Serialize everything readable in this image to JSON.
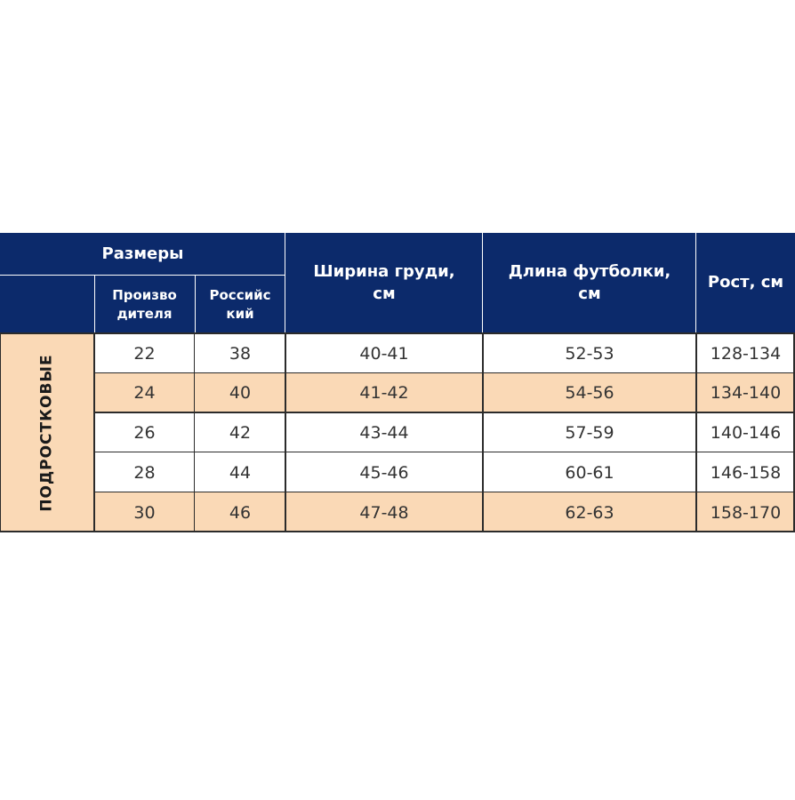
{
  "table": {
    "header": {
      "sizes": "Размеры",
      "manufacturer": "Произво\nдителя",
      "russian": "Российс\nкий",
      "chest_width": "Ширина груди,\nсм",
      "shirt_length": "Длина футболки,\nсм",
      "height": "Рост, см"
    },
    "category_label": "ПОДРОСТКОВЫЕ",
    "rows": [
      {
        "manufacturer": "22",
        "russian": "38",
        "chest": "40-41",
        "length": "52-53",
        "height": "128-134",
        "shade": "white"
      },
      {
        "manufacturer": "24",
        "russian": "40",
        "chest": "41-42",
        "length": "54-56",
        "height": "134-140",
        "shade": "peach"
      },
      {
        "manufacturer": "26",
        "russian": "42",
        "chest": "43-44",
        "length": "57-59",
        "height": "140-146",
        "shade": "white"
      },
      {
        "manufacturer": "28",
        "russian": "44",
        "chest": "45-46",
        "length": "60-61",
        "height": "146-158",
        "shade": "white"
      },
      {
        "manufacturer": "30",
        "russian": "46",
        "chest": "47-48",
        "length": "62-63",
        "height": "158-170",
        "shade": "peach"
      }
    ],
    "colors": {
      "header_bg": "#0c2a6b",
      "header_text": "#ffffff",
      "peach": "#fad9b6",
      "grid": "#2b2b2b"
    }
  }
}
